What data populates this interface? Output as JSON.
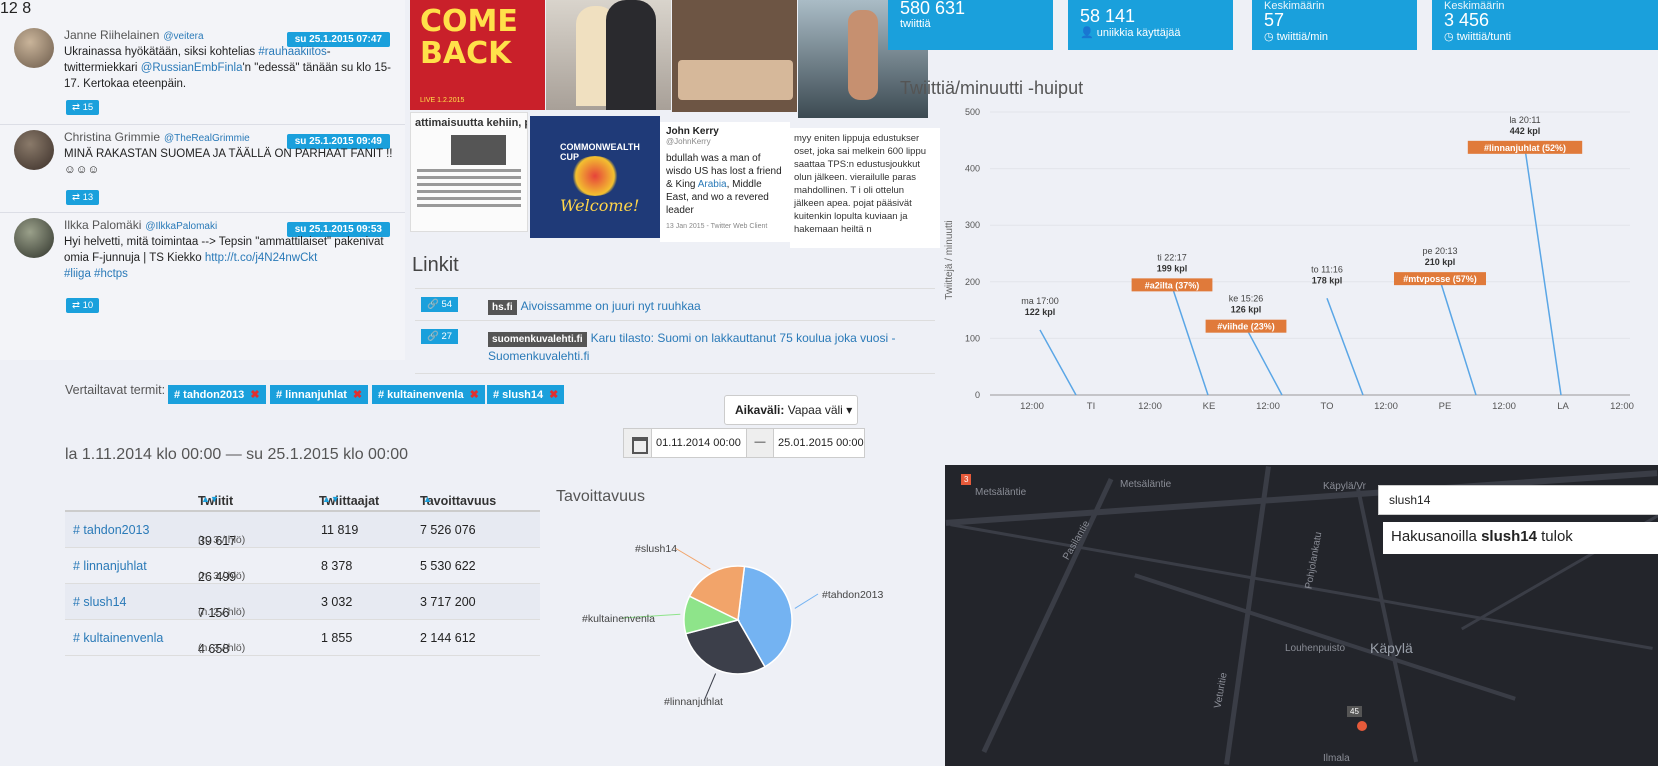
{
  "tweets": [
    {
      "name": "Janne Riihelainen",
      "handle": "@veitera",
      "date": "su 25.1.2015 07:47",
      "text_before": "Ukrainassa hyökätään, siksi kohtelias ",
      "link1": "#rauhaakiitos",
      "text_mid": "-twittermiekkari ",
      "link2": "@RussianEmbFinla",
      "text_after": "'n \"edessä\" tänään su klo 15-17. Kertokaa eteenpäin.",
      "retweets": "15",
      "top_counts": "12   8"
    },
    {
      "name": "Christina Grimmie",
      "handle": "@TheRealGrimmie",
      "date": "su 25.1.2015 09:49",
      "text": "MINÄ RAKASTAN SUOMEA JA TÄÄLLÄ ON PARHAAT FANIT !! ☺☺☺",
      "retweets": "13"
    },
    {
      "name": "Ilkka Palomäki",
      "handle": "@IlkkaPalomaki",
      "date": "su 25.1.2015 09:53",
      "text": "Hyi helvetti, mitä toimintaa --> Tepsin \"ammattilaiset\" pakenivat omia F-junnuja | TS Kiekko ",
      "link1": "http://t.co/j4N24nwCkt",
      "tags": "#liiga #hctps",
      "retweets": "10"
    }
  ],
  "media": {
    "poster_text": "COME BACK",
    "poster_sub": "LIVE 1.2.2015",
    "article_head": "attimaisuutta kehiin, ple",
    "welcome_title": "COMMONWEALTH CUP",
    "welcome_text": "Welcome!",
    "kerry_name": "John Kerry",
    "kerry_handle": "@JohnKerry",
    "kerry_text_1": "bdullah was a man of wisdo",
    "kerry_text_2": "US has lost a friend & King",
    "kerry_link": "Arabia",
    "kerry_text_3": ", Middle East, and wo",
    "kerry_text_4": "a revered leader",
    "kerry_footer": "13 Jan 2015 - Twitter Web Client",
    "news_text": "myy eniten lippuja edustukser oset, joka sai melkein 600 lippu saattaa TPS:n edustusjoukkut olun jälkeen. vierailulle paras mahdollinen. T i oli ottelun jälkeen apea. pojat pääsivät kuitenkin lopulta kuviaan ja hakemaan heiltä n"
  },
  "links": {
    "title": "Linkit",
    "rows": [
      {
        "count": "54",
        "domain": "hs.fi",
        "text": "Aivoissamme on juuri nyt ruuhkaa"
      },
      {
        "count": "27",
        "domain": "suomenkuvalehti.fi",
        "text": "Karu tilasto: Suomi on lakkauttanut 75 koulua joka vuosi - Suomenkuvalehti.fi"
      }
    ]
  },
  "compare": {
    "label": "Vertailtavat termit:",
    "chips": [
      "# tahdon2013",
      "# linnanjuhlat",
      "# kultainenvenla",
      "# slush14"
    ]
  },
  "period": {
    "label": "Aikaväli:",
    "value": "Vapaa väli",
    "start": "01.11.2014 00:00",
    "separator": "—",
    "end": "25.01.2015 00:00"
  },
  "range_title": "la 1.11.2014 klo 00:00 — su 25.1.2015 klo 00:00",
  "stats_table": {
    "headers": [
      "Twiitit",
      "Twiittaajat",
      "Tavoittavuus"
    ],
    "rows": [
      {
        "tag": "# tahdon2013",
        "tweets": "39 617",
        "rank": "(n. 3 / hlö)",
        "users": "11 819",
        "reach": "7 526 076"
      },
      {
        "tag": "# linnanjuhlat",
        "tweets": "26 499",
        "rank": "(n. 3 / hlö)",
        "users": "8 378",
        "reach": "5 530 622"
      },
      {
        "tag": "# slush14",
        "tweets": "7 156",
        "rank": "(n. 2 / hlö)",
        "users": "3 032",
        "reach": "3 717 200"
      },
      {
        "tag": "# kultainenvenla",
        "tweets": "4 658",
        "rank": "(n. 3 / hlö)",
        "users": "1 855",
        "reach": "2 144 612"
      }
    ]
  },
  "tiles": [
    {
      "big": "580 631",
      "label": "twiittiä",
      "caption": ""
    },
    {
      "big": "58 141",
      "label": "uniikkia käyttäjää",
      "caption": ""
    },
    {
      "big": "57",
      "label": "twiittiä/min",
      "caption": "Keskimäärin"
    },
    {
      "big": "3 456",
      "label": "twiittiä/tunti",
      "caption": "Keskimäärin"
    }
  ],
  "chart_data": [
    {
      "type": "pie",
      "title": "Tavoittavuus",
      "labels": [
        "#tahdon2013",
        "#linnanjuhlat",
        "#kultainenvenla",
        "#slush14"
      ],
      "values": [
        7526076,
        5530622,
        2144612,
        3717200
      ],
      "colors": [
        "#74b3f2",
        "#3c3f4a",
        "#8ee48a",
        "#f2a46a"
      ]
    },
    {
      "type": "bar",
      "title": "Twiittiä/minuutti -huiput",
      "ylabel": "Twiittejä / minuutti",
      "ylim": [
        0,
        500
      ],
      "yticks": [
        0,
        100,
        200,
        300,
        400,
        500
      ],
      "xticks": [
        "12:00",
        "TI",
        "12:00",
        "KE",
        "12:00",
        "TO",
        "12:00",
        "PE",
        "12:00",
        "LA",
        "12:00"
      ],
      "peaks": [
        {
          "when": "ma 17:00",
          "value": 122,
          "label": "122 kpl",
          "tag": ""
        },
        {
          "when": "ti 22:17",
          "value": 199,
          "label": "199 kpl",
          "tag": "#a2ilta (37%)"
        },
        {
          "when": "ke 15:26",
          "value": 126,
          "label": "126 kpl",
          "tag": "#viihde (23%)"
        },
        {
          "when": "to 11:16",
          "value": 178,
          "label": "178 kpl",
          "tag": ""
        },
        {
          "when": "pe 20:13",
          "value": 210,
          "label": "210 kpl",
          "tag": "#mtvposse (57%)"
        },
        {
          "when": "la 20:11",
          "value": 442,
          "label": "442 kpl",
          "tag": "#linnanjuhlat (52%)"
        }
      ]
    }
  ],
  "map": {
    "search_value": "slush14",
    "result_prefix": "Hakusanoilla ",
    "result_term": "slush14",
    "result_suffix": " tulok",
    "labels": [
      "Metsäläntie",
      "Metsäläntie",
      "Käpylä/Vr",
      "Pohjolankatu",
      "Käpylä",
      "Louhenpuisto",
      "Veturitie",
      "Pasilantie",
      "Ilmala"
    ],
    "badges": [
      "3",
      "45"
    ]
  },
  "colors": {
    "accent": "#1aa0dc",
    "tag_orange": "#e07a3a",
    "link": "#2a7ab8"
  }
}
